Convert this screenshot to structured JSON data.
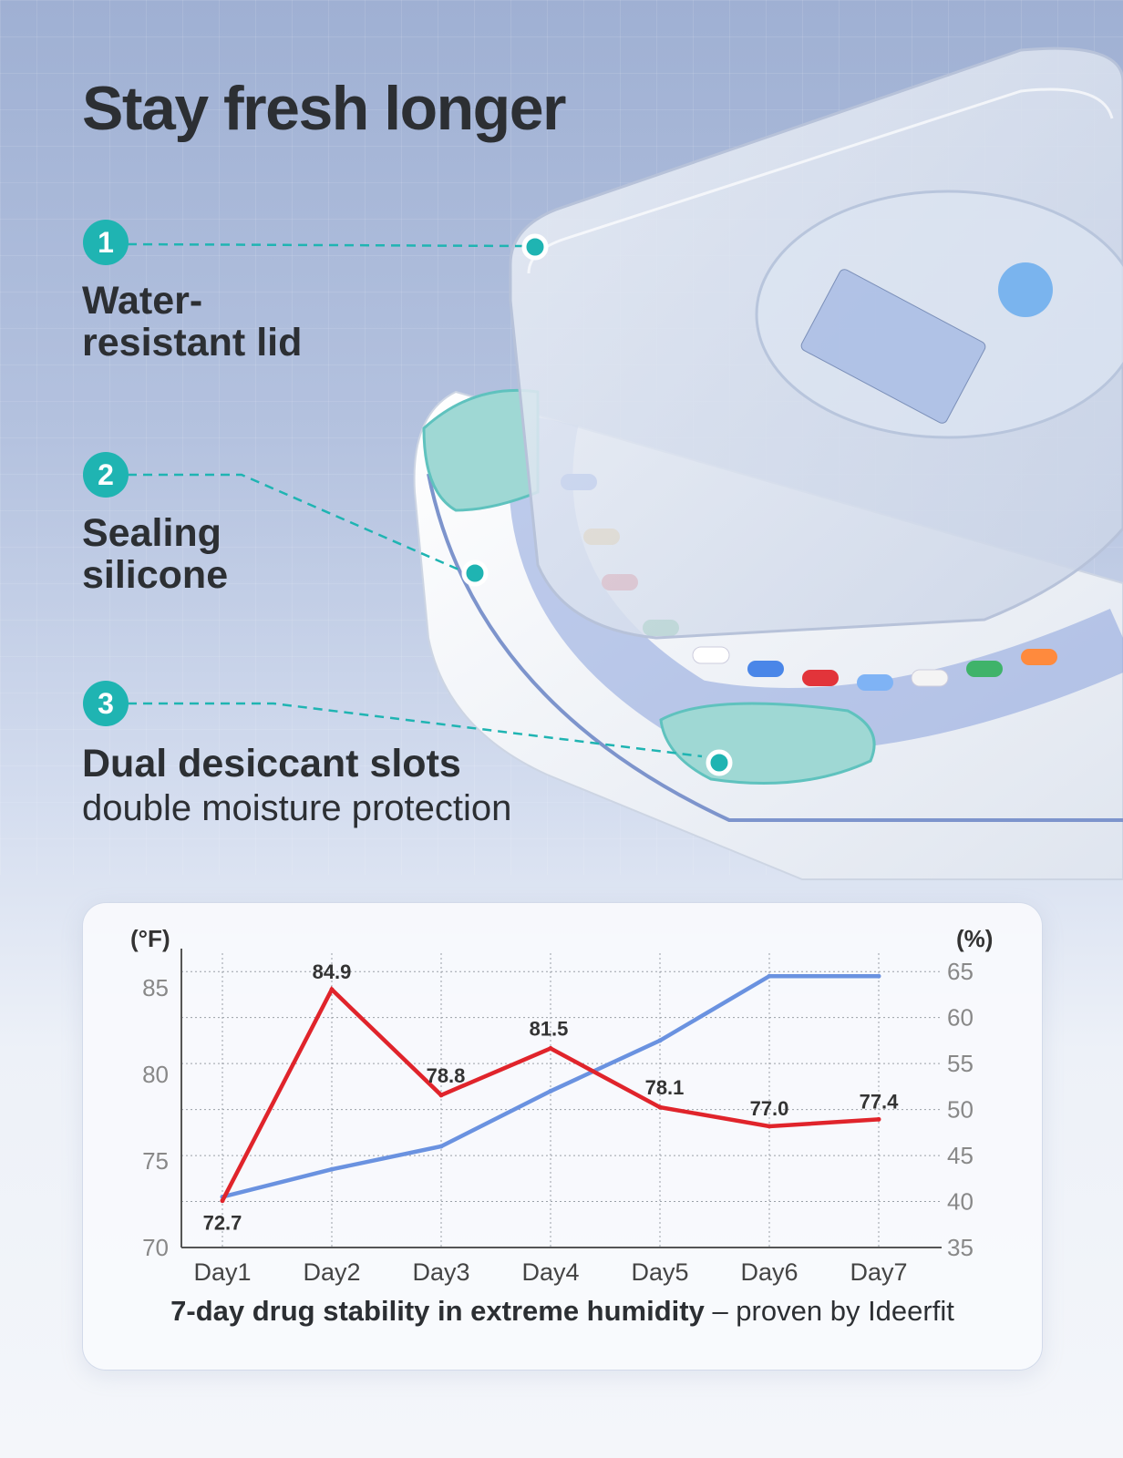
{
  "page": {
    "title": "Stay fresh longer",
    "accent_color": "#1fb4b2"
  },
  "features": [
    {
      "number": "1",
      "line1": "Water-",
      "line2": "resistant lid"
    },
    {
      "number": "2",
      "line1": "Sealing",
      "line2": "silicone"
    },
    {
      "number": "3",
      "line1": "Dual desiccant slots",
      "line2": "double moisture protection"
    }
  ],
  "chart_data": {
    "type": "line",
    "categories": [
      "Day1",
      "Day2",
      "Day3",
      "Day4",
      "Day5",
      "Day6",
      "Day7"
    ],
    "series": [
      {
        "axis": "left",
        "color": "#e0242b",
        "values": [
          72.7,
          84.9,
          78.8,
          81.5,
          78.1,
          77.0,
          77.4
        ],
        "labels": [
          "72.7",
          "84.9",
          "78.8",
          "81.5",
          "78.1",
          "77.0",
          "77.4"
        ]
      },
      {
        "axis": "right",
        "color": "#6a92e0",
        "values": [
          40.5,
          43.5,
          46,
          52,
          57.5,
          64.5,
          64.5
        ]
      }
    ],
    "y_left": {
      "unit": "(°F)",
      "ticks": [
        "70",
        "75",
        "80",
        "85"
      ],
      "range": [
        70,
        87
      ]
    },
    "y_right": {
      "unit": "(%)",
      "ticks": [
        "35",
        "40",
        "45",
        "50",
        "55",
        "60",
        "65"
      ],
      "range": [
        35,
        67
      ]
    },
    "grid": true,
    "caption_bold": "7-day drug stability in extreme humidity",
    "caption_rest": " – proven by Ideerfit"
  }
}
